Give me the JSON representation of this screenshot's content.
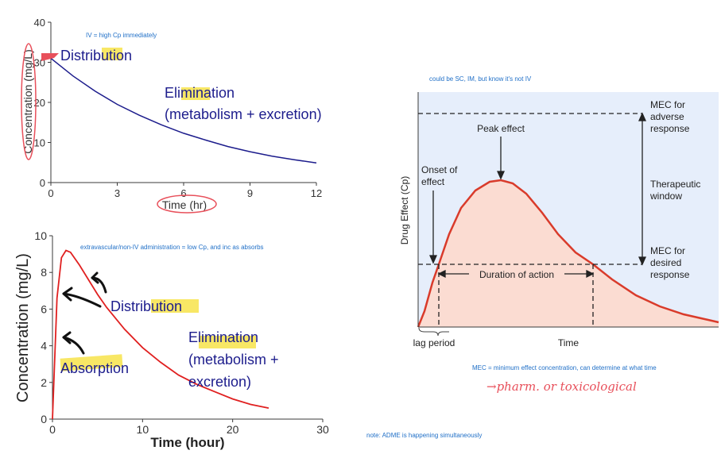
{
  "chart_data": [
    {
      "type": "line",
      "title": "",
      "xlabel": "Time (hr)",
      "ylabel": "Concentration (mg/L)",
      "xlim": [
        0,
        12
      ],
      "ylim": [
        0,
        40
      ],
      "x_ticks": [
        "0",
        "3",
        "6",
        "9",
        "12"
      ],
      "y_ticks": [
        "0",
        "10",
        "20",
        "30",
        "40"
      ],
      "series": [
        {
          "color": "#1c1c8c",
          "x": [
            0,
            1,
            2,
            3,
            4,
            5,
            6,
            7,
            8,
            9,
            10,
            11,
            12
          ],
          "values": [
            31,
            26.6,
            22.8,
            19.5,
            16.8,
            14.4,
            12.3,
            10.6,
            9.0,
            7.7,
            6.6,
            5.7,
            4.9
          ]
        }
      ],
      "annotations": {
        "note": "IV = high Cp immediately",
        "phase1": "Distribution",
        "phase2_line1": "Elimination",
        "phase2_line2": "(metabolism + excretion)"
      }
    },
    {
      "type": "line",
      "title": "",
      "xlabel": "Time (hour)",
      "ylabel": "Concentration (mg/L)",
      "xlim": [
        0,
        30
      ],
      "ylim": [
        0,
        10
      ],
      "x_ticks": [
        "0",
        "10",
        "20",
        "30"
      ],
      "y_ticks": [
        "0",
        "2",
        "4",
        "6",
        "8",
        "10"
      ],
      "series": [
        {
          "color": "#e02020",
          "x": [
            0,
            0.5,
            1,
            1.5,
            2,
            3,
            4,
            5,
            6,
            8,
            10,
            12,
            14,
            16,
            18,
            20,
            22,
            24
          ],
          "values": [
            0,
            6.6,
            8.8,
            9.2,
            9.1,
            8.4,
            7.6,
            6.8,
            6.1,
            4.9,
            3.9,
            3.1,
            2.4,
            1.9,
            1.5,
            1.1,
            0.8,
            0.6
          ]
        }
      ],
      "annotations": {
        "note": "extravascular/non-IV administration = low Cp, and inc as absorbs",
        "phase1": "Distribution",
        "phase2_line1": "Elimination",
        "phase2_line2": "(metabolism +",
        "phase2_line3": "excretion)",
        "phase3": "Absorption"
      }
    },
    {
      "type": "area",
      "title": "",
      "xlabel": "Time",
      "ylabel": "Drug Effect (Cp)",
      "x_axis_note": "lag period",
      "annotations": {
        "note_top": "could be SC, IM, but know it's not IV",
        "peak": "Peak effect",
        "onset_line1": "Onset of",
        "onset_line2": "effect",
        "duration": "Duration of action",
        "mec_adverse": [
          "MEC for",
          "adverse",
          "response"
        ],
        "therapeutic": [
          "Therapeutic",
          "window"
        ],
        "mec_desired": [
          "MEC for",
          "desired",
          "response"
        ],
        "note_bottom": "MEC = minimum effect concentration, can determine at what time",
        "handwritten": "→pharm. or toxicological"
      },
      "colors": {
        "curve": "#d93b2b",
        "fill": "#fbdcd2",
        "background": "#e6eefb"
      }
    }
  ],
  "page_notes": {
    "adme": "note: ADME is happening simultaneously"
  }
}
